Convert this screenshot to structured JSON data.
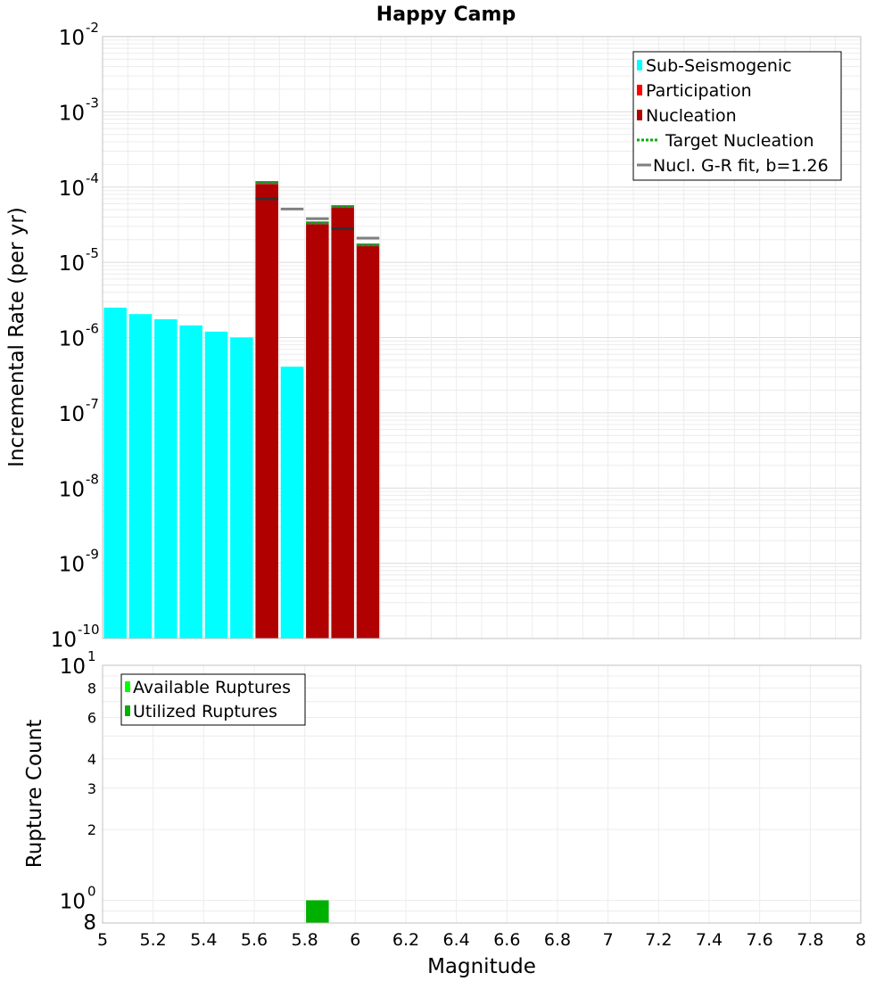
{
  "chart_data": [
    {
      "type": "bar",
      "title": "Happy Camp",
      "xlabel": "",
      "ylabel": "Incremental Rate (per yr)",
      "yscale": "log",
      "ylim": [
        1e-10,
        0.01
      ],
      "xlim": [
        5,
        8
      ],
      "grid": true,
      "legend_position": "top-right",
      "y_ticks": [
        {
          "base": "10",
          "exp": "-2"
        },
        {
          "base": "10",
          "exp": "-3"
        },
        {
          "base": "10",
          "exp": "-4"
        },
        {
          "base": "10",
          "exp": "-5"
        },
        {
          "base": "10",
          "exp": "-6"
        },
        {
          "base": "10",
          "exp": "-7"
        },
        {
          "base": "10",
          "exp": "-8"
        },
        {
          "base": "10",
          "exp": "-9"
        },
        {
          "base": "10",
          "exp": "-10"
        }
      ],
      "legend": [
        {
          "label": "Sub-Seismogenic",
          "style": "box",
          "color": "#00ffff"
        },
        {
          "label": "Participation",
          "style": "box",
          "color": "#ff0000"
        },
        {
          "label": "Nucleation",
          "style": "box",
          "color": "#b00000"
        },
        {
          "label": "Target Nucleation",
          "style": "dotted",
          "color": "#00b000"
        },
        {
          "label": "Nucl. G-R fit, b=1.26",
          "style": "line",
          "color": "#808080"
        }
      ],
      "series": [
        {
          "name": "Sub-Seismogenic",
          "color": "#00ffff",
          "x": [
            5.05,
            5.15,
            5.25,
            5.35,
            5.45,
            5.55,
            5.75
          ],
          "values": [
            2.5e-06,
            2.05e-06,
            1.75e-06,
            1.45e-06,
            1.2e-06,
            1e-06,
            4.1e-07
          ]
        },
        {
          "name": "Nucleation",
          "color": "#b00000",
          "x": [
            5.65,
            5.85,
            5.95,
            6.05
          ],
          "values": [
            0.00011,
            3.2e-05,
            5.3e-05,
            1.65e-05
          ]
        },
        {
          "name": "Target Nucleation",
          "color": "#00b000",
          "x": [
            5.65,
            5.85,
            5.95,
            6.05
          ],
          "values": [
            0.000115,
            3.35e-05,
            5.5e-05,
            1.7e-05
          ]
        },
        {
          "name": "Nucl. G-R fit, b=1.26",
          "color": "#808080",
          "x": [
            5.65,
            5.75,
            5.85,
            5.95,
            6.05
          ],
          "values": [
            7e-05,
            5.1e-05,
            3.8e-05,
            2.8e-05,
            2.1e-05
          ]
        }
      ]
    },
    {
      "type": "bar",
      "title": "",
      "xlabel": "Magnitude",
      "ylabel": "Rupture Count",
      "yscale": "log",
      "ylim": [
        0.8,
        10
      ],
      "xlim": [
        5,
        8
      ],
      "grid": true,
      "legend_position": "top-left",
      "x_ticks": [
        "5",
        "5.2",
        "5.4",
        "5.6",
        "5.8",
        "6",
        "6.2",
        "6.4",
        "6.6",
        "6.8",
        "7",
        "7.2",
        "7.4",
        "7.6",
        "7.8",
        "8"
      ],
      "y_ticks_major": [
        {
          "value": 10,
          "base": "10",
          "exp": "1"
        },
        {
          "value": 1,
          "base": "10",
          "exp": "0"
        }
      ],
      "y_ticks_minor": [
        {
          "value": 8,
          "label": "8"
        },
        {
          "value": 6,
          "label": "6"
        },
        {
          "value": 4,
          "label": "4"
        },
        {
          "value": 3,
          "label": "3"
        },
        {
          "value": 2,
          "label": "2"
        }
      ],
      "y_tick_bottom": {
        "value": 0.8,
        "label": "8"
      },
      "legend": [
        {
          "label": "Available Ruptures",
          "color": "#00ff00"
        },
        {
          "label": "Utilized Ruptures",
          "color": "#00b000"
        }
      ],
      "series": [
        {
          "name": "Utilized Ruptures",
          "color": "#00b000",
          "x": [
            5.85
          ],
          "values": [
            1
          ]
        }
      ]
    }
  ]
}
